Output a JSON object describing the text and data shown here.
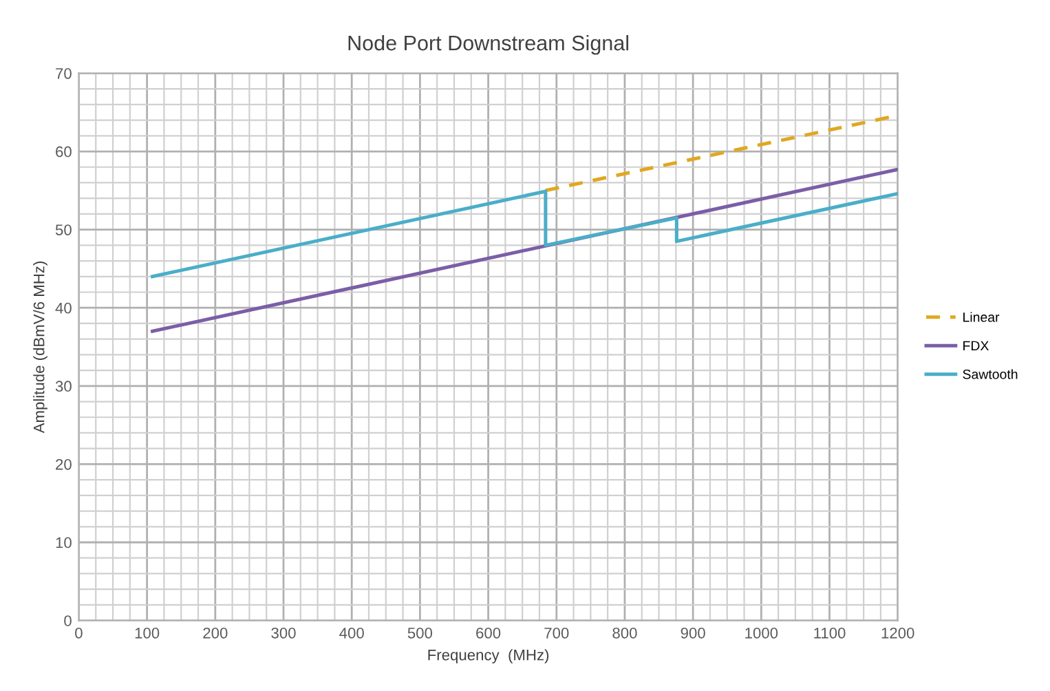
{
  "chart_data": {
    "type": "line",
    "title": "Node Port Downstream Signal",
    "xlabel": "Frequency  (MHz)",
    "ylabel": "Amplitude (dBmV/6 MHz)",
    "xlim": [
      0,
      1200
    ],
    "xticks": [
      0,
      100,
      200,
      300,
      400,
      500,
      600,
      700,
      800,
      900,
      1000,
      1100,
      1200
    ],
    "ylim": [
      0,
      70
    ],
    "yticks": [
      0,
      10,
      20,
      30,
      40,
      50,
      60,
      70
    ],
    "grid": true,
    "legend": "right",
    "marker": "none",
    "series": [
      {
        "name": "Linear",
        "color": "#e0a820",
        "line_style": "dashed",
        "x": [
          684,
          1200
        ],
        "values": [
          55.0,
          64.6
        ]
      },
      {
        "name": "FDX",
        "color": "#7b5ea7",
        "line_style": "solid",
        "x": [
          108,
          1200
        ],
        "values": [
          37.0,
          57.7
        ]
      },
      {
        "name": "Sawtooth",
        "color": "#4aaec8",
        "line_style": "solid",
        "x": [
          108,
          684,
          684,
          876,
          876,
          1200
        ],
        "values": [
          44.0,
          54.9,
          48.0,
          51.5,
          48.5,
          54.6
        ]
      }
    ]
  }
}
